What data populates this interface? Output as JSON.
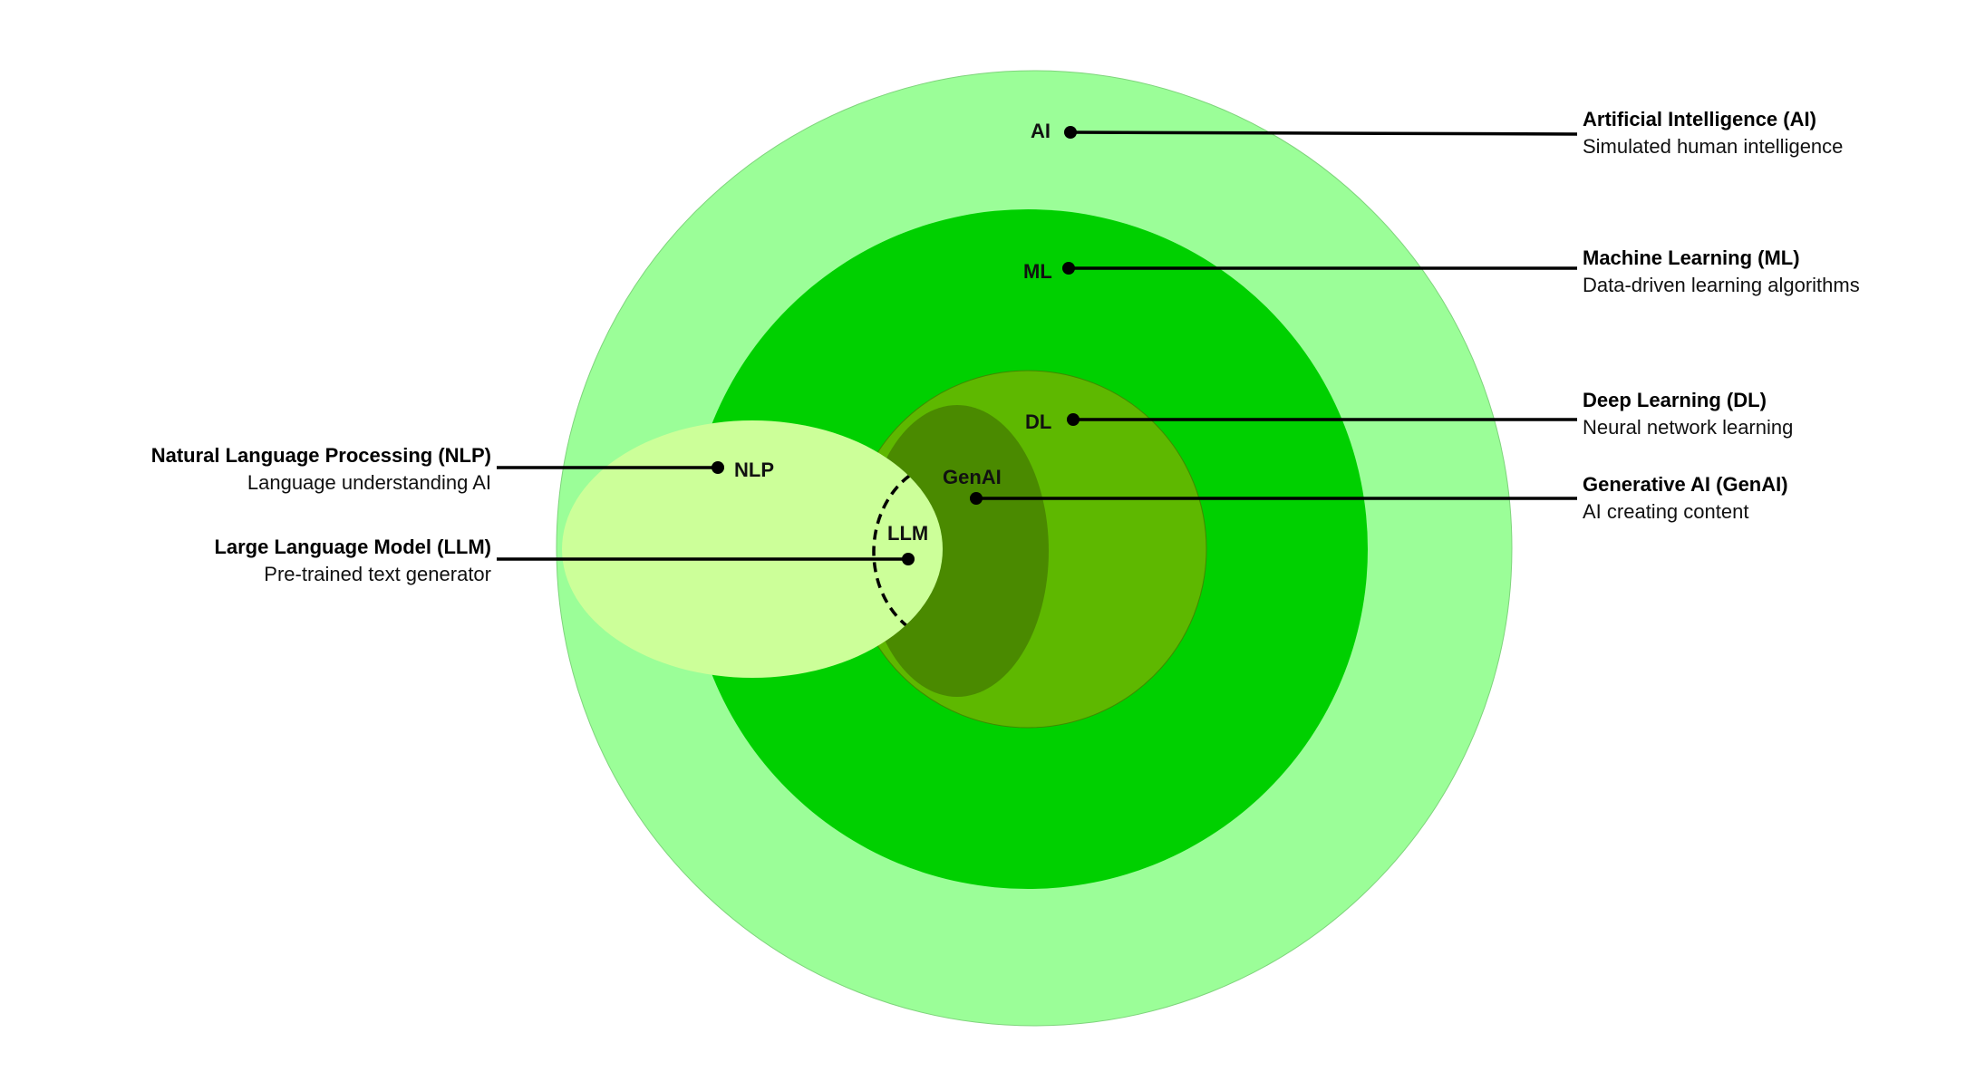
{
  "colors": {
    "background": "#ffffff",
    "ai_fill": "#9bfe98",
    "ml_fill": "#00d000",
    "dl_fill": "#5eb800",
    "genai_fill": "#4a8a00",
    "nlp_fill": "#ccff99",
    "line": "#000000"
  },
  "regions": {
    "ai": {
      "label": "AI"
    },
    "ml": {
      "label": "ML"
    },
    "dl": {
      "label": "DL"
    },
    "genai": {
      "label": "GenAI"
    },
    "nlp": {
      "label": "NLP"
    },
    "llm": {
      "label": "LLM"
    }
  },
  "callouts": {
    "ai": {
      "title": "Artificial Intelligence (AI)",
      "description": "Simulated human intelligence"
    },
    "ml": {
      "title": "Machine Learning (ML)",
      "description": "Data-driven learning algorithms"
    },
    "dl": {
      "title": "Deep Learning (DL)",
      "description": "Neural network learning"
    },
    "genai": {
      "title": "Generative AI (GenAI)",
      "description": "AI creating content"
    },
    "nlp": {
      "title": "Natural Language Processing (NLP)",
      "description": "Language understanding AI"
    },
    "llm": {
      "title": "Large Language Model (LLM)",
      "description": "Pre-trained text generator"
    }
  }
}
